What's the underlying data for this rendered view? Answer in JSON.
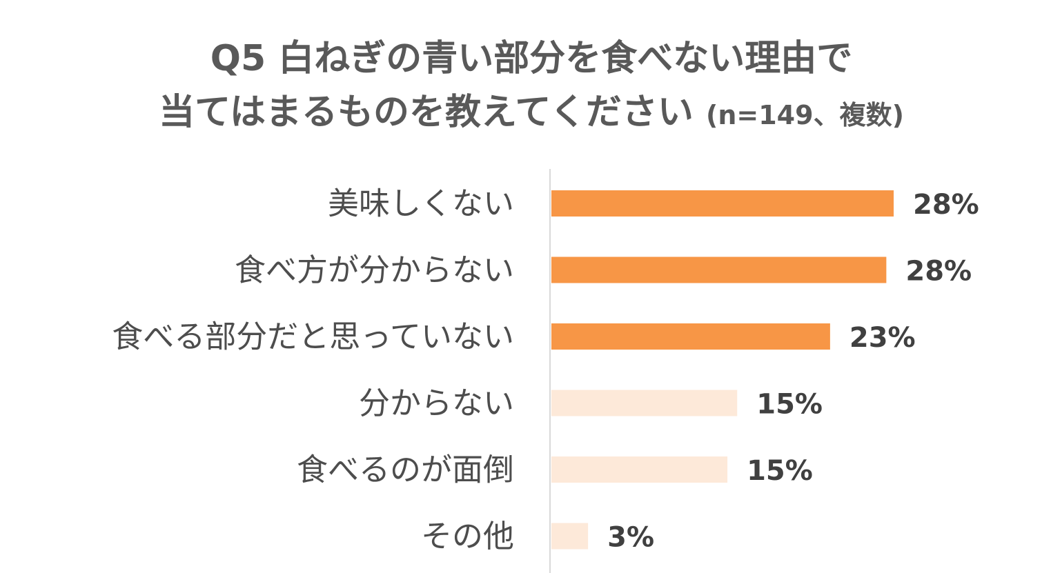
{
  "title": {
    "line1": "Q5 白ねぎの青い部分を食べない理由で",
    "line2": "当てはまるものを教えてください",
    "suffix": "(n=149、複数)"
  },
  "colors": {
    "highlight": "#f79646",
    "muted": "#fde9d9",
    "axis": "#d9d9d9"
  },
  "chart_data": {
    "type": "bar",
    "orientation": "horizontal",
    "categories": [
      "美味しくない",
      "食べ方が分からない",
      "食べる部分だと思っていない",
      "分からない",
      "食べるのが面倒",
      "その他"
    ],
    "values": [
      28,
      28,
      23,
      15,
      15,
      3
    ],
    "value_labels": [
      "28%",
      "28%",
      "23%",
      "15%",
      "15%",
      "3%"
    ],
    "unit": "%",
    "highlighted": [
      true,
      true,
      true,
      false,
      false,
      false
    ],
    "precise_values": [
      28.0,
      27.4,
      22.8,
      15.2,
      14.4,
      3.0
    ],
    "xlim": [
      0,
      30
    ],
    "grid": false,
    "legend": "none"
  }
}
